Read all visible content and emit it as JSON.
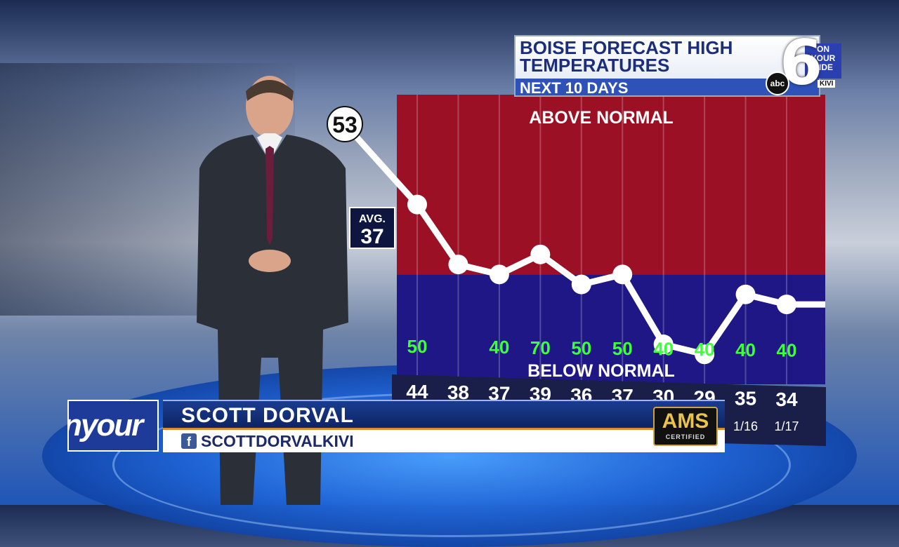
{
  "graphic": {
    "title": "BOISE FORECAST HIGH TEMPERATURES",
    "subtitle": "NEXT 10 DAYS"
  },
  "logo": {
    "number": "6",
    "network": "abc",
    "tagline": "ON YOUR SIDE",
    "station": "KIVI"
  },
  "lower_third": {
    "brand_fragment": "nyour",
    "name": "SCOTT DORVAL",
    "social_handle": "SCOTTDORVALKIVI",
    "badge_main": "AMS",
    "badge_sub": "CERTIFIED"
  },
  "colors": {
    "above_normal": "#9b1024",
    "below_normal": "#1e1785",
    "line": "#ffffff",
    "chance_text": "#3dff3d"
  },
  "chart_data": {
    "type": "line",
    "title": "BOISE FORECAST HIGH TEMPERATURES",
    "subtitle": "NEXT 10 DAYS",
    "current_value": 53,
    "average_label": "AVG.",
    "average_value": 37,
    "zone_labels": {
      "above": "ABOVE NORMAL",
      "below": "BELOW NORMAL"
    },
    "x_labels": [
      "",
      "",
      "",
      "",
      "",
      "",
      "",
      "",
      "1/16",
      "1/17"
    ],
    "values": [
      44,
      38,
      37,
      39,
      36,
      37,
      30,
      29,
      35,
      34
    ],
    "value_labels": [
      "44",
      "38",
      "37",
      "39",
      "36",
      "37",
      "30",
      "29",
      "35",
      "34"
    ],
    "precip_chance": [
      "50",
      "",
      "40",
      "70",
      "50",
      "50",
      "40",
      "40",
      "40",
      "40"
    ],
    "ylim": [
      26,
      55
    ],
    "grid": true
  }
}
